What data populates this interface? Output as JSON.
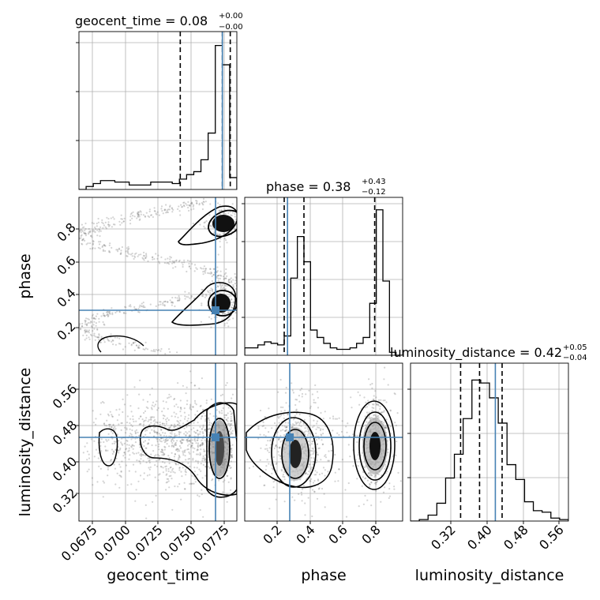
{
  "chart_data": {
    "type": "corner",
    "parameters": [
      "geocent_time",
      "phase",
      "luminosity_distance"
    ],
    "titles": [
      {
        "param": "geocent_time",
        "text": "geocent_time = 0.08",
        "sup": "+0.00",
        "sub": "−0.00"
      },
      {
        "param": "phase",
        "text": "phase = 0.38",
        "sup": "+0.43",
        "sub": "−0.12"
      },
      {
        "param": "luminosity_distance",
        "text": "luminosity_distance = 0.42",
        "sup": "+0.05",
        "sub": "−0.04"
      }
    ],
    "axis_labels": {
      "x": [
        "geocent_time",
        "phase",
        "luminosity_distance"
      ],
      "y": [
        "phase",
        "luminosity_distance"
      ]
    },
    "ranges": {
      "geocent_time": [
        0.0665,
        0.0785
      ],
      "phase": [
        0.02,
        0.98
      ],
      "luminosity_distance": [
        0.265,
        0.615
      ]
    },
    "ticks": {
      "geocent_time": [
        "0.0675",
        "0.0700",
        "0.0725",
        "0.0750",
        "0.0775"
      ],
      "phase": [
        "0.2",
        "0.4",
        "0.6",
        "0.8"
      ],
      "luminosity_distance": [
        "0.32",
        "0.40",
        "0.48",
        "0.56"
      ]
    },
    "truths": {
      "geocent_time": 0.0774,
      "phase": 0.28,
      "luminosity_distance": 0.453
    },
    "quantiles": {
      "geocent_time": [
        0.0742,
        0.0774,
        0.078
      ],
      "phase": [
        0.26,
        0.38,
        0.81
      ],
      "luminosity_distance": [
        0.376,
        0.418,
        0.468
      ]
    },
    "histograms": {
      "geocent_time": [
        0.0,
        0.02,
        0.04,
        0.06,
        0.06,
        0.05,
        0.05,
        0.03,
        0.03,
        0.03,
        0.05,
        0.05,
        0.05,
        0.04,
        0.07,
        0.1,
        0.12,
        0.2,
        0.38,
        0.97,
        0.84,
        0.08
      ],
      "phase": [
        0.05,
        0.05,
        0.07,
        0.09,
        0.08,
        0.07,
        0.13,
        0.52,
        0.8,
        0.63,
        0.17,
        0.12,
        0.08,
        0.05,
        0.04,
        0.04,
        0.05,
        0.08,
        0.12,
        0.35,
        0.98,
        0.5,
        0.02,
        0.0
      ],
      "luminosity_distance": [
        0.0,
        0.01,
        0.04,
        0.12,
        0.29,
        0.45,
        0.69,
        0.95,
        0.93,
        0.83,
        0.66,
        0.38,
        0.28,
        0.13,
        0.07,
        0.06,
        0.02,
        0.01
      ]
    },
    "contour_centers": {
      "geocent_time_phase": [
        [
          0.0778,
          0.82
        ],
        [
          0.0778,
          0.32
        ]
      ],
      "geocent_time_luminosity_distance": [
        [
          0.0776,
          0.44
        ]
      ],
      "phase_luminosity_distance": [
        [
          0.35,
          0.43
        ],
        [
          0.81,
          0.44
        ]
      ]
    },
    "grid": true,
    "truth_color": "#4682b4",
    "line_color": "#000000"
  }
}
